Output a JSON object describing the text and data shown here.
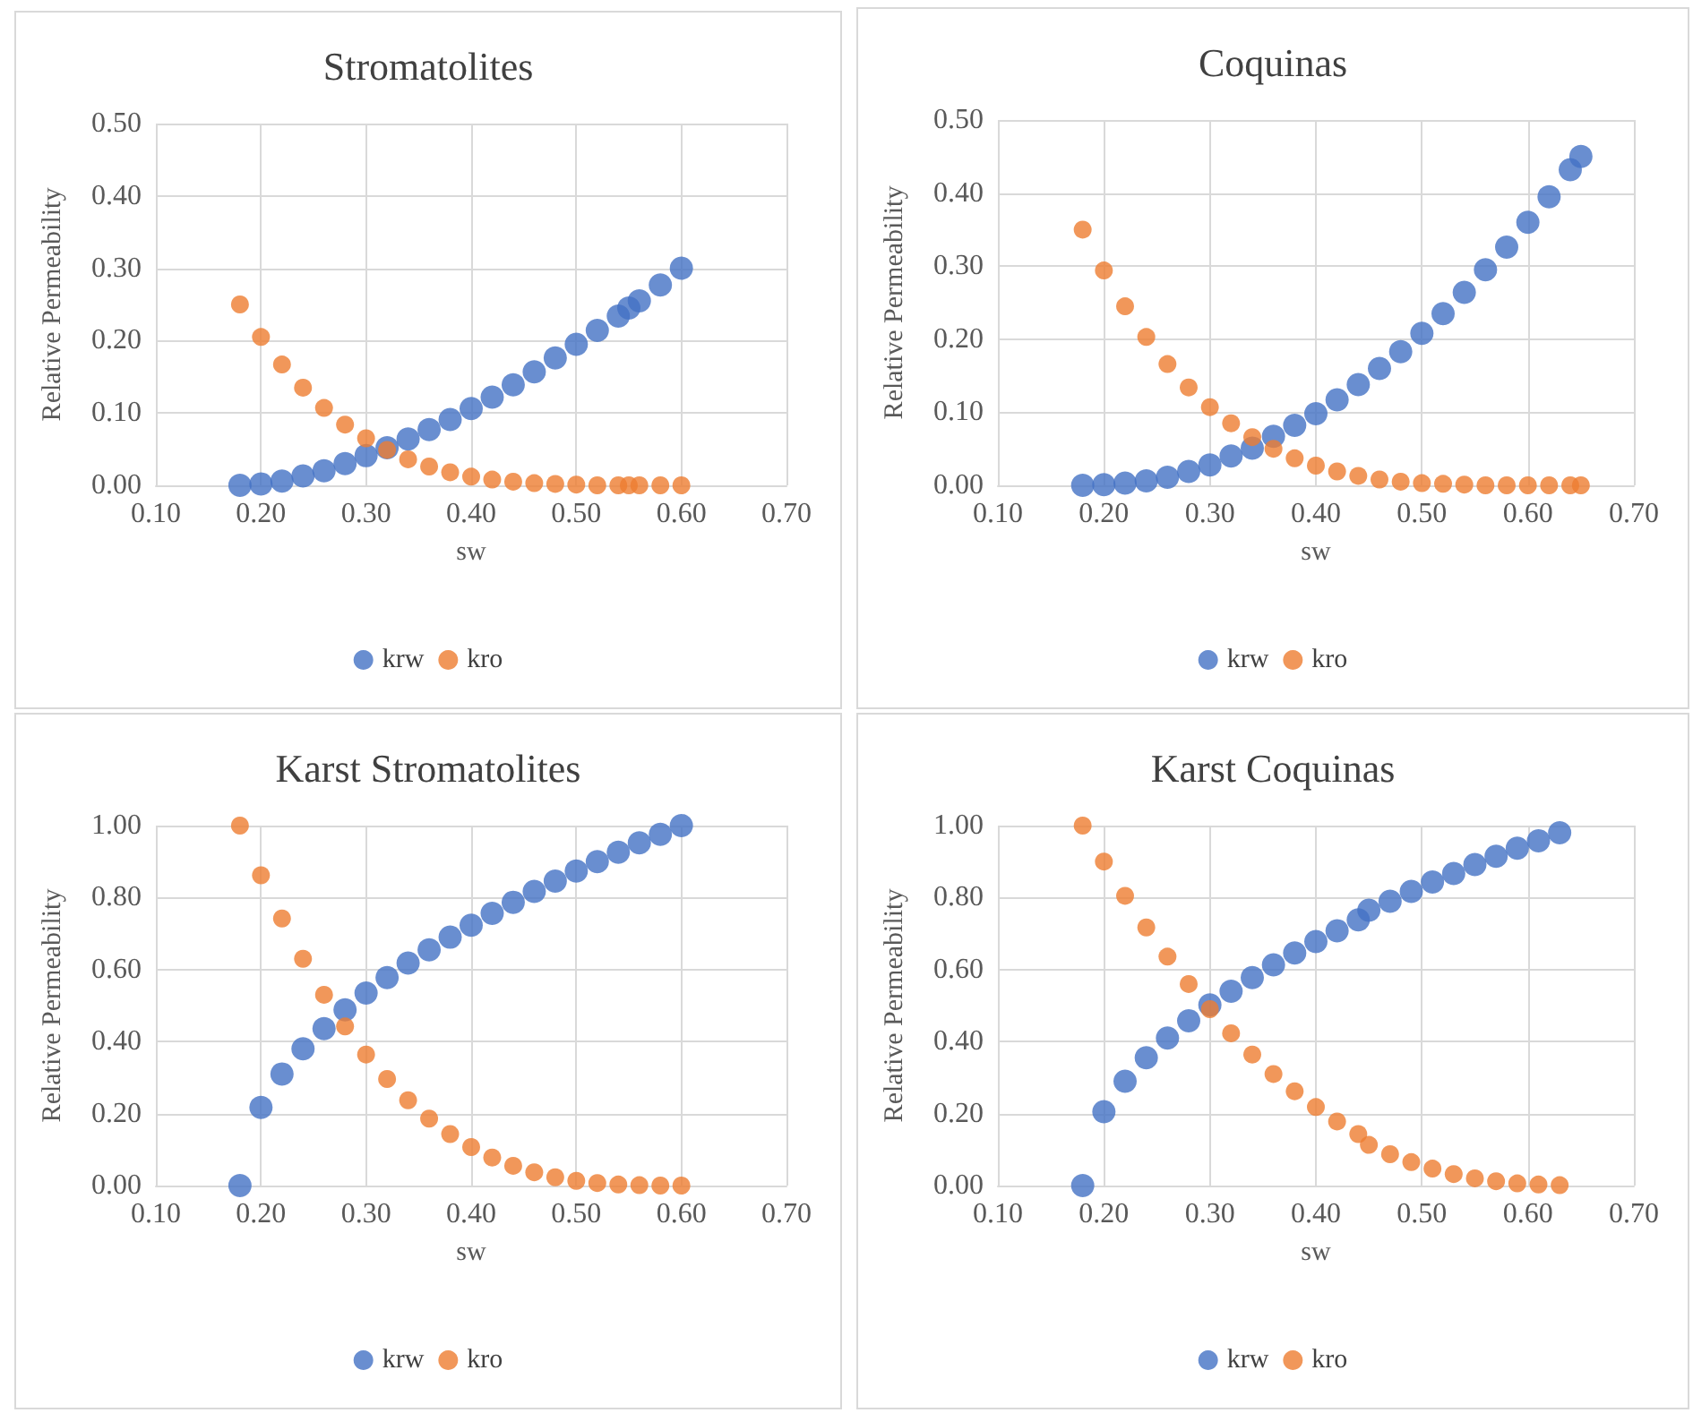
{
  "chart_data": [
    {
      "type": "scatter",
      "title": "Stromatolites",
      "xlabel": "sw",
      "ylabel": "Relative Permeability",
      "xlim": [
        0.1,
        0.7
      ],
      "xticks": [
        {
          "value": 0.1,
          "label": "0.10"
        },
        {
          "value": 0.2,
          "label": "0.20"
        },
        {
          "value": 0.3,
          "label": "0.30"
        },
        {
          "value": 0.4,
          "label": "0.40"
        },
        {
          "value": 0.5,
          "label": "0.50"
        },
        {
          "value": 0.6,
          "label": "0.60"
        },
        {
          "value": 0.7,
          "label": "0.70"
        }
      ],
      "ylim": [
        0,
        0.5
      ],
      "yticks": [
        {
          "value": 0,
          "label": "0.00"
        },
        {
          "value": 0.1,
          "label": "0.10"
        },
        {
          "value": 0.2,
          "label": "0.20"
        },
        {
          "value": 0.3,
          "label": "0.30"
        },
        {
          "value": 0.4,
          "label": "0.40"
        },
        {
          "value": 0.5,
          "label": "0.50"
        }
      ],
      "grid": true,
      "legend": "bottom",
      "marker": "circle",
      "x": [
        0.18,
        0.2,
        0.22,
        0.24,
        0.26,
        0.28,
        0.3,
        0.32,
        0.34,
        0.36,
        0.38,
        0.4,
        0.42,
        0.44,
        0.46,
        0.48,
        0.5,
        0.52,
        0.54,
        0.55,
        0.56,
        0.58,
        0.6
      ],
      "series": [
        {
          "name": "krw",
          "color": "#4472c4",
          "values": [
            0,
            0.002,
            0.006,
            0.013,
            0.02,
            0.03,
            0.041,
            0.052,
            0.064,
            0.077,
            0.091,
            0.106,
            0.122,
            0.139,
            0.157,
            0.176,
            0.195,
            0.214,
            0.234,
            0.245,
            0.255,
            0.277,
            0.3
          ]
        },
        {
          "name": "kro",
          "color": "#ed7d31",
          "values": [
            0.25,
            0.205,
            0.167,
            0.135,
            0.107,
            0.084,
            0.065,
            0.049,
            0.036,
            0.026,
            0.018,
            0.012,
            0.008,
            0.005,
            0.003,
            0.002,
            0.001,
            0,
            0,
            0,
            0,
            0,
            0
          ]
        }
      ]
    },
    {
      "type": "scatter",
      "title": "Coquinas",
      "xlabel": "sw",
      "ylabel": "Relative Permeability",
      "xlim": [
        0.1,
        0.7
      ],
      "xticks": [
        {
          "value": 0.1,
          "label": "0.10"
        },
        {
          "value": 0.2,
          "label": "0.20"
        },
        {
          "value": 0.3,
          "label": "0.30"
        },
        {
          "value": 0.4,
          "label": "0.40"
        },
        {
          "value": 0.5,
          "label": "0.50"
        },
        {
          "value": 0.6,
          "label": "0.60"
        },
        {
          "value": 0.7,
          "label": "0.70"
        }
      ],
      "ylim": [
        0,
        0.5
      ],
      "yticks": [
        {
          "value": 0,
          "label": "0.00"
        },
        {
          "value": 0.1,
          "label": "0.10"
        },
        {
          "value": 0.2,
          "label": "0.20"
        },
        {
          "value": 0.3,
          "label": "0.30"
        },
        {
          "value": 0.4,
          "label": "0.40"
        },
        {
          "value": 0.5,
          "label": "0.50"
        }
      ],
      "grid": true,
      "legend": "bottom",
      "marker": "circle",
      "x": [
        0.18,
        0.2,
        0.22,
        0.24,
        0.26,
        0.28,
        0.3,
        0.32,
        0.34,
        0.36,
        0.38,
        0.4,
        0.42,
        0.44,
        0.46,
        0.48,
        0.5,
        0.52,
        0.54,
        0.56,
        0.58,
        0.6,
        0.62,
        0.64,
        0.65
      ],
      "series": [
        {
          "name": "krw",
          "color": "#4472c4",
          "values": [
            0,
            0.001,
            0.003,
            0.006,
            0.011,
            0.019,
            0.028,
            0.04,
            0.051,
            0.067,
            0.082,
            0.098,
            0.117,
            0.138,
            0.16,
            0.183,
            0.208,
            0.235,
            0.264,
            0.295,
            0.326,
            0.36,
            0.395,
            0.432,
            0.45
          ]
        },
        {
          "name": "kro",
          "color": "#ed7d31",
          "values": [
            0.35,
            0.294,
            0.245,
            0.203,
            0.166,
            0.134,
            0.107,
            0.085,
            0.066,
            0.05,
            0.037,
            0.027,
            0.019,
            0.013,
            0.008,
            0.005,
            0.003,
            0.002,
            0.001,
            0,
            0,
            0,
            0,
            0,
            0
          ]
        }
      ]
    },
    {
      "type": "scatter",
      "title": "Karst Stromatolites",
      "xlabel": "sw",
      "ylabel": "Relative Permeability",
      "xlim": [
        0.1,
        0.7
      ],
      "xticks": [
        {
          "value": 0.1,
          "label": "0.10"
        },
        {
          "value": 0.2,
          "label": "0.20"
        },
        {
          "value": 0.3,
          "label": "0.30"
        },
        {
          "value": 0.4,
          "label": "0.40"
        },
        {
          "value": 0.5,
          "label": "0.50"
        },
        {
          "value": 0.6,
          "label": "0.60"
        },
        {
          "value": 0.7,
          "label": "0.70"
        }
      ],
      "ylim": [
        0,
        1
      ],
      "yticks": [
        {
          "value": 0,
          "label": "0.00"
        },
        {
          "value": 0.2,
          "label": "0.20"
        },
        {
          "value": 0.4,
          "label": "0.40"
        },
        {
          "value": 0.6,
          "label": "0.60"
        },
        {
          "value": 0.8,
          "label": "0.80"
        },
        {
          "value": 1,
          "label": "1.00"
        }
      ],
      "grid": true,
      "legend": "bottom",
      "marker": "circle",
      "x": [
        0.18,
        0.2,
        0.22,
        0.24,
        0.26,
        0.28,
        0.3,
        0.32,
        0.34,
        0.36,
        0.38,
        0.4,
        0.42,
        0.44,
        0.46,
        0.48,
        0.5,
        0.52,
        0.54,
        0.56,
        0.58,
        0.6
      ],
      "series": [
        {
          "name": "krw",
          "color": "#4472c4",
          "values": [
            0,
            0.217,
            0.31,
            0.38,
            0.436,
            0.488,
            0.535,
            0.578,
            0.618,
            0.655,
            0.69,
            0.723,
            0.756,
            0.787,
            0.817,
            0.846,
            0.874,
            0.9,
            0.926,
            0.952,
            0.976,
            1
          ]
        },
        {
          "name": "kro",
          "color": "#ed7d31",
          "values": [
            1,
            0.862,
            0.742,
            0.63,
            0.53,
            0.442,
            0.364,
            0.296,
            0.237,
            0.186,
            0.143,
            0.107,
            0.078,
            0.055,
            0.037,
            0.023,
            0.013,
            0.007,
            0.003,
            0.001,
            0,
            0
          ]
        }
      ]
    },
    {
      "type": "scatter",
      "title": "Karst Coquinas",
      "xlabel": "sw",
      "ylabel": "Relative Permeability",
      "xlim": [
        0.1,
        0.7
      ],
      "xticks": [
        {
          "value": 0.1,
          "label": "0.10"
        },
        {
          "value": 0.2,
          "label": "0.20"
        },
        {
          "value": 0.3,
          "label": "0.30"
        },
        {
          "value": 0.4,
          "label": "0.40"
        },
        {
          "value": 0.5,
          "label": "0.50"
        },
        {
          "value": 0.6,
          "label": "0.60"
        },
        {
          "value": 0.7,
          "label": "0.70"
        }
      ],
      "ylim": [
        0,
        1
      ],
      "yticks": [
        {
          "value": 0,
          "label": "0.00"
        },
        {
          "value": 0.2,
          "label": "0.20"
        },
        {
          "value": 0.4,
          "label": "0.40"
        },
        {
          "value": 0.6,
          "label": "0.60"
        },
        {
          "value": 0.8,
          "label": "0.80"
        },
        {
          "value": 1,
          "label": "1.00"
        }
      ],
      "grid": true,
      "legend": "bottom",
      "marker": "circle",
      "x": [
        0.18,
        0.2,
        0.22,
        0.24,
        0.26,
        0.28,
        0.3,
        0.32,
        0.34,
        0.36,
        0.38,
        0.4,
        0.42,
        0.44,
        0.45,
        0.47,
        0.49,
        0.51,
        0.53,
        0.55,
        0.57,
        0.59,
        0.61,
        0.63
      ],
      "series": [
        {
          "name": "krw",
          "color": "#4472c4",
          "values": [
            0,
            0.205,
            0.29,
            0.355,
            0.41,
            0.458,
            0.502,
            0.54,
            0.578,
            0.613,
            0.646,
            0.678,
            0.708,
            0.738,
            0.765,
            0.79,
            0.817,
            0.843,
            0.867,
            0.892,
            0.915,
            0.937,
            0.958,
            0.98
          ]
        },
        {
          "name": "kro",
          "color": "#ed7d31",
          "values": [
            1,
            0.9,
            0.805,
            0.717,
            0.636,
            0.56,
            0.49,
            0.423,
            0.364,
            0.31,
            0.262,
            0.218,
            0.178,
            0.143,
            0.113,
            0.087,
            0.065,
            0.047,
            0.032,
            0.02,
            0.012,
            0.006,
            0.003,
            0.001
          ]
        }
      ]
    }
  ]
}
